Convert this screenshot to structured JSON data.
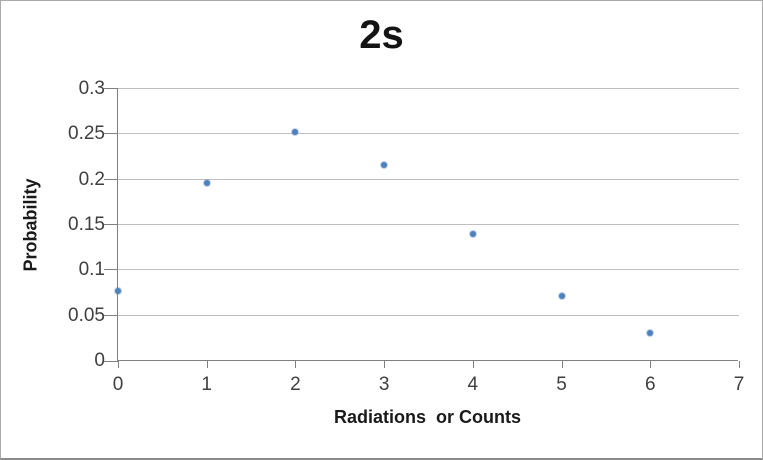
{
  "chart_data": {
    "type": "scatter",
    "title": "2s",
    "xlabel": "Radiations  or Counts",
    "ylabel": "Probability",
    "x": [
      0,
      1,
      2,
      3,
      4,
      5,
      6
    ],
    "values": [
      0.077,
      0.196,
      0.253,
      0.216,
      0.14,
      0.072,
      0.031
    ],
    "xlim": [
      0,
      7
    ],
    "ylim": [
      0,
      0.3
    ],
    "x_tick_labels": [
      "0",
      "1",
      "2",
      "3",
      "4",
      "5",
      "6",
      "7"
    ],
    "y_tick_labels": [
      "0",
      "0.05",
      "0.1",
      "0.15",
      "0.2",
      "0.25",
      "0.3"
    ],
    "grid": "horizontal-major",
    "legend": "none",
    "colors": {
      "marker": "#4f81bd",
      "gridline": "#bfbfbf",
      "axis_line": "#808080",
      "tick_label": "#3f3f3f",
      "title": "#141414",
      "canvas_border": "#aaaaaa",
      "canvas_border_bottom": "#8c8c8c",
      "background": "#ffffff"
    }
  }
}
